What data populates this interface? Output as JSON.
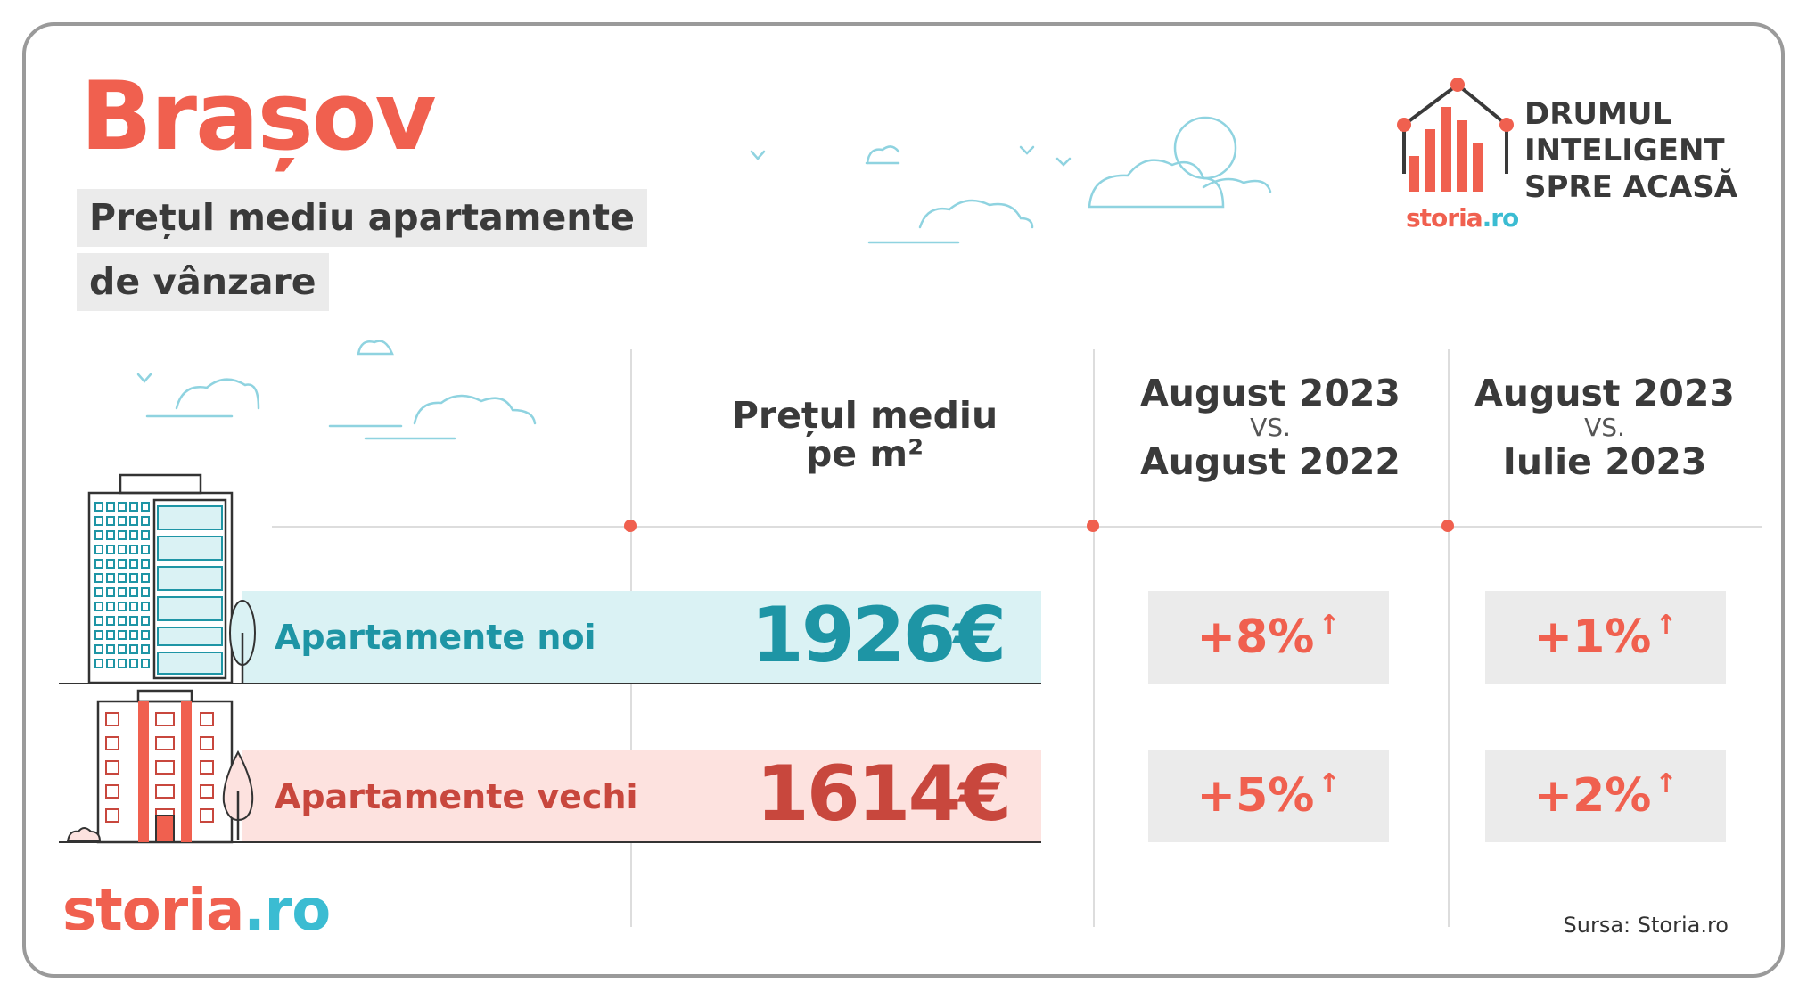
{
  "header": {
    "title": "Brașov",
    "subtitle_line1": "Prețul mediu apartamente",
    "subtitle_line2": "de vânzare"
  },
  "brand": {
    "tagline_line1": "DRUMUL",
    "tagline_line2": "INTELIGENT",
    "tagline_line3": "SPRE ACASĂ",
    "small_logo_main": "storia",
    "small_logo_dot": ".ro"
  },
  "columns": {
    "price": {
      "line1": "Prețul mediu",
      "line2": "pe m²"
    },
    "yoy": {
      "line1": "August 2023",
      "vs": "VS.",
      "line2": "August 2022"
    },
    "mom": {
      "line1": "August 2023",
      "vs": "VS.",
      "line2": "Iulie 2023"
    }
  },
  "rows": [
    {
      "label": "Apartamente noi",
      "price": "1926€",
      "yoy": "+8%",
      "mom": "+1%",
      "arrow": "↑"
    },
    {
      "label": "Apartamente vechi",
      "price": "1614€",
      "yoy": "+5%",
      "mom": "+2%",
      "arrow": "↑"
    }
  ],
  "footer": {
    "logo_main": "storia",
    "logo_dot": ".ro",
    "source": "Sursa:  Storia.ro"
  },
  "colors": {
    "accent": "#f0604f",
    "teal": "#1e95a5",
    "new_band": "#daf2f4",
    "old_band": "#fde2df",
    "old_value": "#c8473d",
    "box": "#ebebeb",
    "cloud": "#8fd3e0"
  },
  "icons": [
    "cloud-icon",
    "bird-icon",
    "house-chart-icon",
    "tower-building-icon",
    "block-building-icon",
    "tree-icon",
    "up-arrow-icon"
  ]
}
